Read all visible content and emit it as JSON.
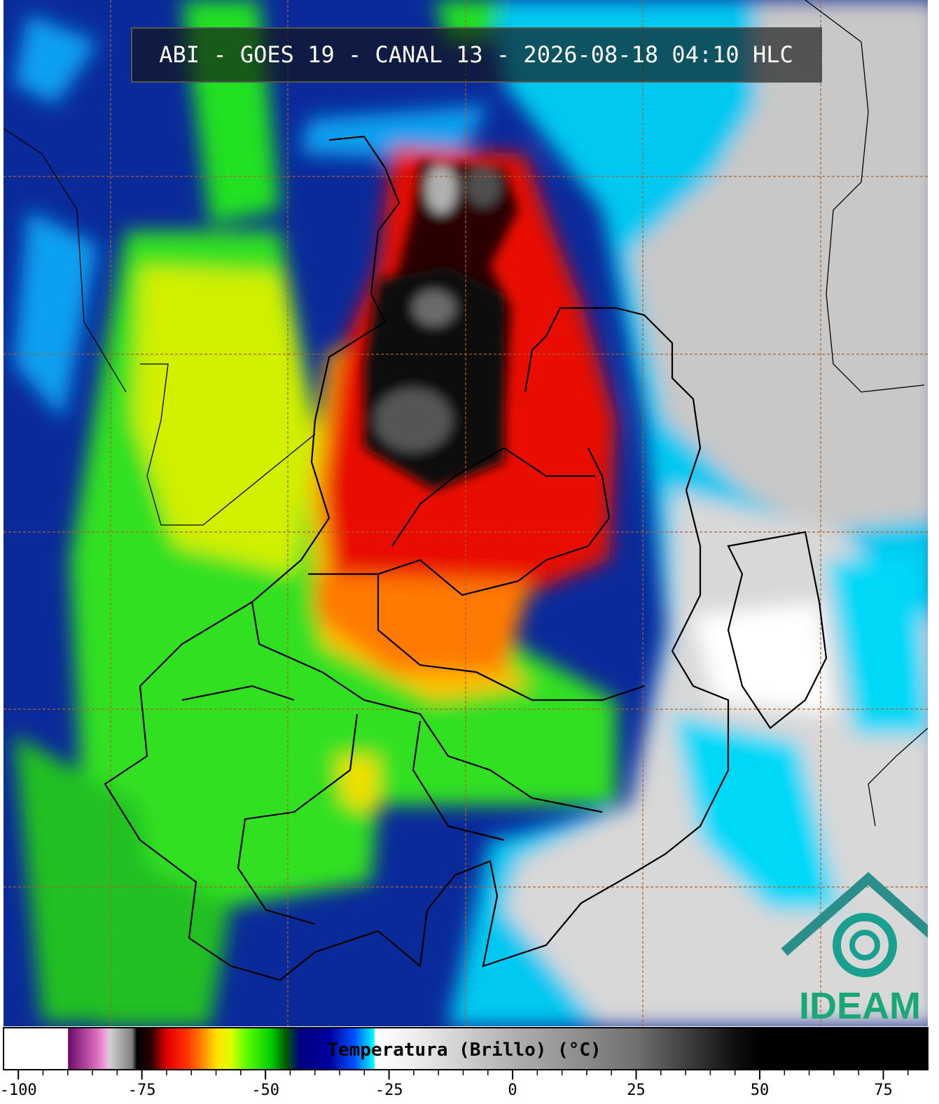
{
  "title": "ABI - GOES 19 - CANAL 13 - 2026-08-18 04:10 HLC",
  "logo": "IDEAM",
  "colorbar": {
    "label": "Temperatura (Brillo) (°C)",
    "lim": [
      -103,
      84
    ],
    "ticks": [
      -100,
      -75,
      -50,
      -25,
      0,
      25,
      50,
      75
    ],
    "minor_tick_step": 5,
    "stops": [
      {
        "value": -103,
        "color": "#ffffff"
      },
      {
        "value": -90,
        "color": "#ffffff"
      },
      {
        "value": -89.9,
        "color": "#6a0a6a"
      },
      {
        "value": -84,
        "color": "#e070c0"
      },
      {
        "value": -82,
        "color": "#f0b0e0"
      },
      {
        "value": -81.5,
        "color": "#d0d0d0"
      },
      {
        "value": -77,
        "color": "#808080"
      },
      {
        "value": -76,
        "color": "#000000"
      },
      {
        "value": -73,
        "color": "#300000"
      },
      {
        "value": -70,
        "color": "#e00000"
      },
      {
        "value": -66,
        "color": "#ff3000"
      },
      {
        "value": -63,
        "color": "#ff8000"
      },
      {
        "value": -60,
        "color": "#ffe000"
      },
      {
        "value": -57,
        "color": "#e0ff00"
      },
      {
        "value": -54,
        "color": "#60ff00"
      },
      {
        "value": -49,
        "color": "#00d000"
      },
      {
        "value": -46,
        "color": "#006000"
      },
      {
        "value": -43,
        "color": "#000080"
      },
      {
        "value": -37,
        "color": "#0000a0"
      },
      {
        "value": -32,
        "color": "#0050ff"
      },
      {
        "value": -28,
        "color": "#00ffff"
      },
      {
        "value": -27.9,
        "color": "#ffffff"
      },
      {
        "value": -20,
        "color": "#eeeeee"
      },
      {
        "value": 0,
        "color": "#b0b0b0"
      },
      {
        "value": 25,
        "color": "#707070"
      },
      {
        "value": 45,
        "color": "#101010"
      },
      {
        "value": 50,
        "color": "#000000"
      },
      {
        "value": 84,
        "color": "#000000"
      }
    ]
  }
}
